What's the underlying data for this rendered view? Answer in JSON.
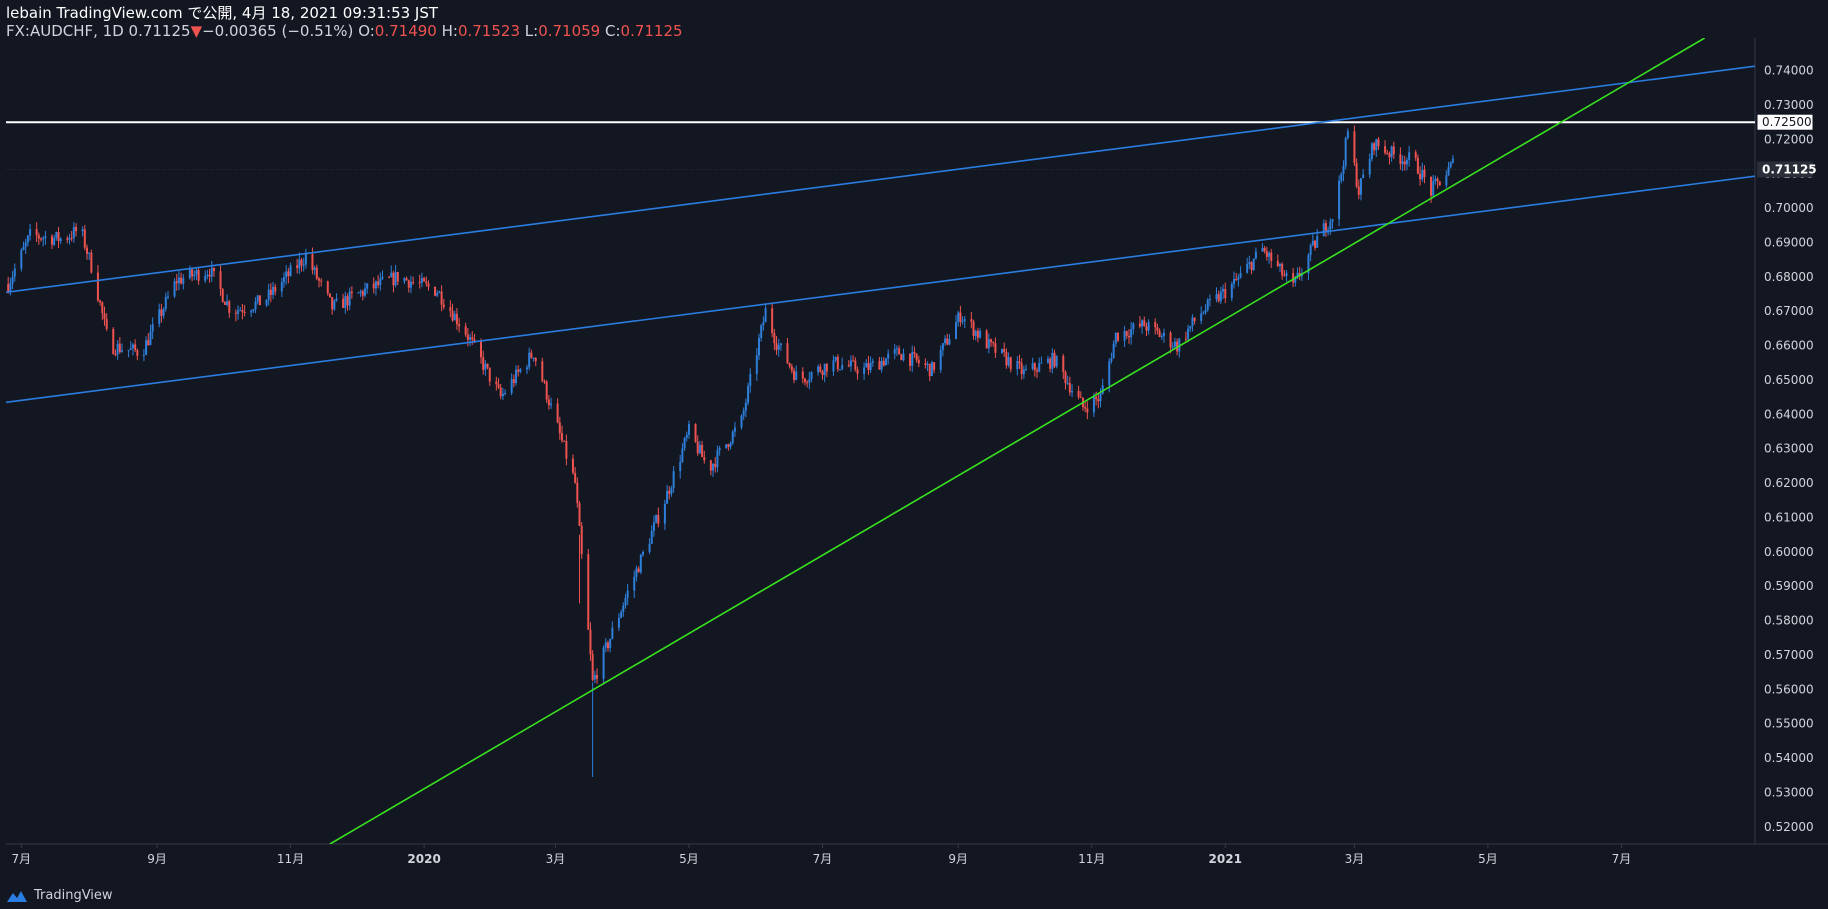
{
  "header": {
    "line1": "lebain TradingView.com で公開, 4月 18, 2021 09:31:53 JST",
    "symbol": "FX:AUDCHF, 1D 0.71125",
    "change_arrow": "▼",
    "change": "−0.00365 (−0.51%)",
    "o_label": "O:",
    "o_value": "0.71490",
    "h_label": "H:",
    "h_value": "0.71523",
    "l_label": "L:",
    "l_value": "0.71059",
    "c_label": "C:",
    "c_value": "0.71125"
  },
  "footer": {
    "brand": "TradingView"
  },
  "colors": {
    "background": "#131722",
    "up": "#2e7fd9",
    "down": "#ef5350",
    "trendline_blue": "#2a7de1",
    "trendline_green": "#39e21f",
    "hline": "#ffffff",
    "axis_text": "#d1d4dc"
  },
  "chart_data": {
    "type": "candlestick",
    "symbol": "FX:AUDCHF",
    "interval": "1D",
    "ylim": [
      0.515,
      0.7495
    ],
    "y_ticks": [
      "0.74000",
      "0.73000",
      "0.72000",
      "0.71000",
      "0.70000",
      "0.69000",
      "0.68000",
      "0.67000",
      "0.66000",
      "0.65000",
      "0.64000",
      "0.63000",
      "0.62000",
      "0.61000",
      "0.60000",
      "0.59000",
      "0.58000",
      "0.57000",
      "0.56000",
      "0.55000",
      "0.54000",
      "0.53000",
      "0.52000"
    ],
    "x_ticks": [
      {
        "label": "7月",
        "x": "2019-07-01"
      },
      {
        "label": "9月",
        "x": "2019-09-01"
      },
      {
        "label": "11月",
        "x": "2019-11-01"
      },
      {
        "label": "2020",
        "x": "2020-01-01"
      },
      {
        "label": "3月",
        "x": "2020-03-01"
      },
      {
        "label": "5月",
        "x": "2020-05-01"
      },
      {
        "label": "7月",
        "x": "2020-07-01"
      },
      {
        "label": "9月",
        "x": "2020-09-01"
      },
      {
        "label": "11月",
        "x": "2020-11-01"
      },
      {
        "label": "2021",
        "x": "2021-01-01"
      },
      {
        "label": "3月",
        "x": "2021-03-01"
      },
      {
        "label": "5月",
        "x": "2021-05-01"
      },
      {
        "label": "7月",
        "x": "2021-07-01"
      }
    ],
    "xlim": [
      "2019-06-24",
      "2021-08-31"
    ],
    "price_labels": [
      {
        "value": 0.725,
        "text": "0.72500",
        "style": "white"
      },
      {
        "value": 0.71125,
        "text": "0.71125",
        "style": "dark"
      }
    ],
    "hlines": [
      0.725
    ],
    "trendlines": [
      {
        "color": "blue",
        "points": [
          [
            "2019-06-24",
            0.6755
          ],
          [
            "2021-08-31",
            0.7413
          ]
        ]
      },
      {
        "color": "blue",
        "points": [
          [
            "2019-06-24",
            0.6435
          ],
          [
            "2021-08-31",
            0.7093
          ]
        ]
      },
      {
        "color": "green",
        "points": [
          [
            "2019-11-19",
            0.515
          ],
          [
            "2021-08-08",
            0.7495
          ]
        ]
      }
    ],
    "path": [
      [
        "2019-06-25",
        0.678
      ],
      [
        "2019-07-05",
        0.692
      ],
      [
        "2019-07-20",
        0.691
      ],
      [
        "2019-07-28",
        0.694
      ],
      [
        "2019-08-03",
        0.681
      ],
      [
        "2019-08-10",
        0.66
      ],
      [
        "2019-08-25",
        0.658
      ],
      [
        "2019-09-10",
        0.679
      ],
      [
        "2019-09-25",
        0.682
      ],
      [
        "2019-10-05",
        0.67
      ],
      [
        "2019-10-20",
        0.673
      ],
      [
        "2019-11-08",
        0.686
      ],
      [
        "2019-11-20",
        0.671
      ],
      [
        "2019-12-05",
        0.676
      ],
      [
        "2019-12-20",
        0.68
      ],
      [
        "2020-01-07",
        0.676
      ],
      [
        "2020-01-20",
        0.664
      ],
      [
        "2020-02-05",
        0.645
      ],
      [
        "2020-02-20",
        0.658
      ],
      [
        "2020-03-01",
        0.638
      ],
      [
        "2020-03-10",
        0.62
      ],
      [
        "2020-03-18",
        0.562
      ],
      [
        "2020-03-23",
        0.57
      ],
      [
        "2020-04-01",
        0.585
      ],
      [
        "2020-04-20",
        0.615
      ],
      [
        "2020-05-01",
        0.635
      ],
      [
        "2020-05-10",
        0.624
      ],
      [
        "2020-05-25",
        0.638
      ],
      [
        "2020-06-05",
        0.67
      ],
      [
        "2020-06-10",
        0.661
      ],
      [
        "2020-06-20",
        0.65
      ],
      [
        "2020-07-05",
        0.655
      ],
      [
        "2020-07-20",
        0.653
      ],
      [
        "2020-08-05",
        0.658
      ],
      [
        "2020-08-20",
        0.653
      ],
      [
        "2020-09-02",
        0.669
      ],
      [
        "2020-09-15",
        0.66
      ],
      [
        "2020-10-01",
        0.652
      ],
      [
        "2020-10-15",
        0.656
      ],
      [
        "2020-10-28",
        0.642
      ],
      [
        "2020-11-05",
        0.645
      ],
      [
        "2020-11-12",
        0.663
      ],
      [
        "2020-11-25",
        0.666
      ],
      [
        "2020-12-10",
        0.66
      ],
      [
        "2020-12-20",
        0.669
      ],
      [
        "2021-01-05",
        0.678
      ],
      [
        "2021-01-18",
        0.688
      ],
      [
        "2021-02-01",
        0.677
      ],
      [
        "2021-02-12",
        0.691
      ],
      [
        "2021-02-20",
        0.699
      ],
      [
        "2021-02-26",
        0.722
      ],
      [
        "2021-03-03",
        0.705
      ],
      [
        "2021-03-10",
        0.719
      ],
      [
        "2021-03-20",
        0.715
      ],
      [
        "2021-03-28",
        0.714
      ],
      [
        "2021-04-05",
        0.705
      ],
      [
        "2021-04-12",
        0.71
      ],
      [
        "2021-04-16",
        0.714
      ]
    ]
  }
}
